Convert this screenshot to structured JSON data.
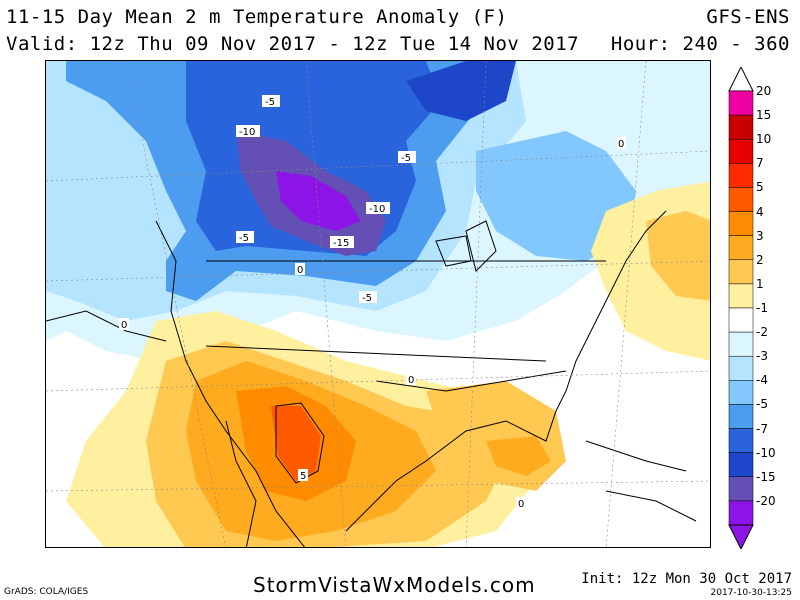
{
  "header": {
    "title": "11-15 Day Mean 2 m Temperature Anomaly (F)",
    "model": "GFS-ENS",
    "valid": "Valid: 12z Thu 09 Nov 2017 - 12z Tue 14 Nov 2017",
    "hour": "Hour: 240 - 360"
  },
  "footer": {
    "grads": "GrADS: COLA/IGES",
    "site": "StormVistaWxModels.com",
    "init": "Init: 12z Mon 30 Oct 2017",
    "stamp": "2017-10-30-13:25"
  },
  "legend": {
    "labels": [
      "20",
      "15",
      "10",
      "7",
      "5",
      "4",
      "3",
      "2",
      "1",
      "-1",
      "-2",
      "-3",
      "-4",
      "-5",
      "-7",
      "-10",
      "-15",
      "-20"
    ],
    "colors": [
      "#f000a0",
      "#c80000",
      "#e60000",
      "#ff2a00",
      "#ff5a00",
      "#ff8c00",
      "#ffab20",
      "#ffc850",
      "#fff0a0",
      "#ffffff",
      "#dcf6ff",
      "#b4e4ff",
      "#82c8ff",
      "#4c9cf0",
      "#2a64dc",
      "#1e46c8",
      "#6450b4",
      "#8c14e6"
    ]
  },
  "map": {
    "contour_labels": [
      {
        "text": "-5"
      },
      {
        "text": "-10"
      },
      {
        "text": "-5"
      },
      {
        "text": "-10"
      },
      {
        "text": "-15"
      },
      {
        "text": "-5"
      },
      {
        "text": "-5"
      },
      {
        "text": "0"
      },
      {
        "text": "0"
      },
      {
        "text": "0"
      },
      {
        "text": "0"
      },
      {
        "text": "5"
      },
      {
        "text": "0"
      }
    ]
  }
}
